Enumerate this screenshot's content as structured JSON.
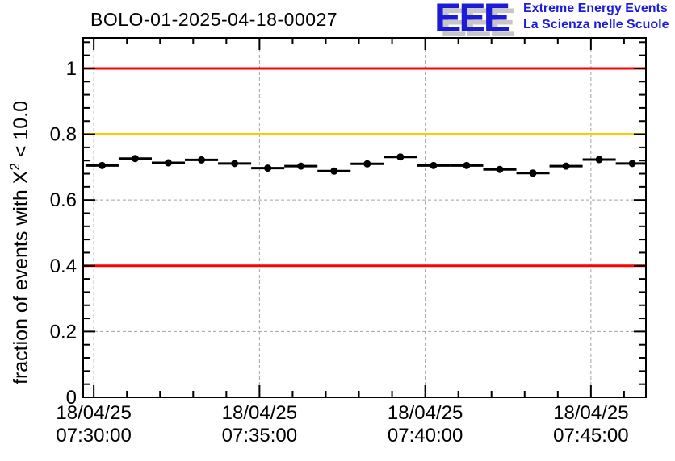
{
  "logo": {
    "letters": "EEE",
    "line1": "Extreme Energy Events",
    "line2": "La Scienza nelle Scuole",
    "letter_color": "#1c1cd8",
    "shadow_color": "#c6c6c6",
    "text_color": "#1c1ce0"
  },
  "chart_data": {
    "type": "scatter",
    "title": "BOLO-01-2025-04-18-00027",
    "ylabel": {
      "prefix": "fraction of events with X",
      "sup": "2",
      "suffix": " < 10.0"
    },
    "xlabel": "",
    "legend": "none",
    "grid": {
      "show": true,
      "color": "#a3a3a3",
      "dash": "4 3"
    },
    "x_axis": {
      "kind": "time",
      "range_minutes_from_0730": [
        -0.32,
        16.66
      ],
      "major_tick_interval_min": 5,
      "minor_tick_interval_min": 1,
      "major_ticks": [
        {
          "t_min": 0,
          "label_line1": "18/04/25",
          "label_line2": "07:30:00"
        },
        {
          "t_min": 5,
          "label_line1": "18/04/25",
          "label_line2": "07:35:00"
        },
        {
          "t_min": 10,
          "label_line1": "18/04/25",
          "label_line2": "07:40:00"
        },
        {
          "t_min": 15,
          "label_line1": "18/04/25",
          "label_line2": "07:45:00"
        }
      ]
    },
    "y_axis": {
      "range": [
        0,
        1.093
      ],
      "minor_step": 0.04,
      "major_ticks": [
        {
          "v": 0,
          "label": "0"
        },
        {
          "v": 0.2,
          "label": "0.2"
        },
        {
          "v": 0.4,
          "label": "0.4"
        },
        {
          "v": 0.6,
          "label": "0.6"
        },
        {
          "v": 0.8,
          "label": "0.8"
        },
        {
          "v": 1,
          "label": "1"
        }
      ]
    },
    "reference_lines": [
      {
        "y": 1.0,
        "color": "#ff0000"
      },
      {
        "y": 0.8,
        "color": "#ffcc00"
      },
      {
        "y": 0.4,
        "color": "#ff0000"
      }
    ],
    "series": [
      {
        "name": "fraction_chi2_lt_10",
        "marker": "filled-circle",
        "color": "#000000",
        "x_error_half_width_min": 0.5,
        "points": [
          {
            "t_min": 0.25,
            "y": 0.705
          },
          {
            "t_min": 1.25,
            "y": 0.726
          },
          {
            "t_min": 2.25,
            "y": 0.713
          },
          {
            "t_min": 3.25,
            "y": 0.722
          },
          {
            "t_min": 4.25,
            "y": 0.711
          },
          {
            "t_min": 5.25,
            "y": 0.697
          },
          {
            "t_min": 6.25,
            "y": 0.703
          },
          {
            "t_min": 7.25,
            "y": 0.688
          },
          {
            "t_min": 8.25,
            "y": 0.71
          },
          {
            "t_min": 9.25,
            "y": 0.731
          },
          {
            "t_min": 10.25,
            "y": 0.705
          },
          {
            "t_min": 11.25,
            "y": 0.705
          },
          {
            "t_min": 12.25,
            "y": 0.693
          },
          {
            "t_min": 13.25,
            "y": 0.682
          },
          {
            "t_min": 14.25,
            "y": 0.703
          },
          {
            "t_min": 15.25,
            "y": 0.723
          },
          {
            "t_min": 16.25,
            "y": 0.711
          }
        ]
      }
    ]
  }
}
